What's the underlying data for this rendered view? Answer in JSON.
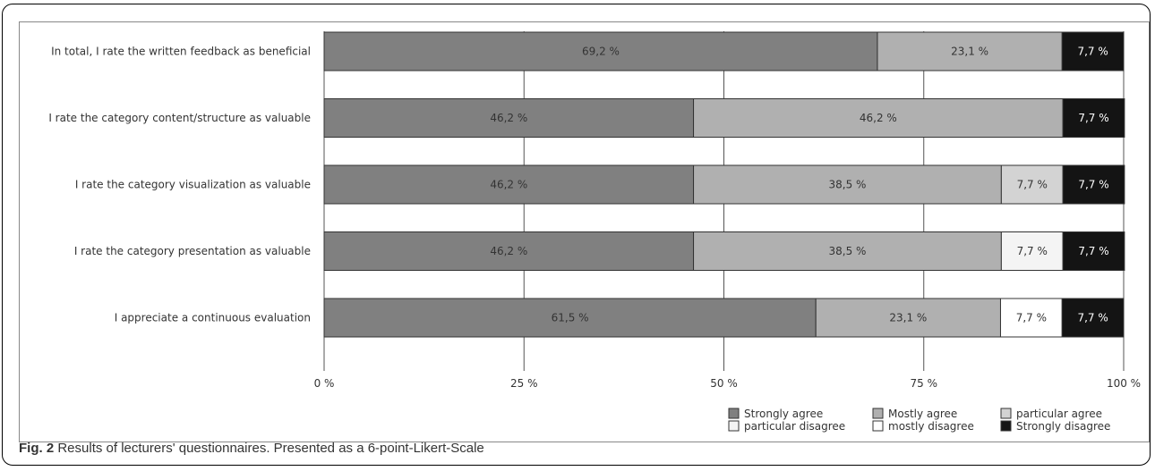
{
  "chart_data": {
    "type": "bar",
    "orientation": "horizontal",
    "stacked": true,
    "categories": [
      "In total, I rate the written feedback as beneficial",
      "I rate the category content/structure as valuable",
      "I rate the category visualization as valuable",
      "I rate the category presentation as valuable",
      "I appreciate a continuous evaluation"
    ],
    "series": [
      {
        "name": "Strongly agree",
        "color": "#808080",
        "values": [
          69.2,
          46.2,
          46.2,
          46.2,
          61.5
        ],
        "labels": [
          "69,2 %",
          "46,2 %",
          "46,2 %",
          "46,2 %",
          "61,5 %"
        ]
      },
      {
        "name": "Mostly agree",
        "color": "#b0b0b0",
        "values": [
          23.1,
          46.2,
          38.5,
          38.5,
          23.1
        ],
        "labels": [
          "23,1 %",
          "46,2 %",
          "38,5 %",
          "38,5 %",
          "23,1 %"
        ]
      },
      {
        "name": "particular agree",
        "color": "#d3d3d3",
        "values": [
          0,
          0,
          7.7,
          0,
          0
        ],
        "labels": [
          "",
          "",
          "7,7 %",
          "",
          ""
        ]
      },
      {
        "name": "particular disagree",
        "color": "#f4f4f4",
        "values": [
          0,
          0,
          0,
          7.7,
          0
        ],
        "labels": [
          "",
          "",
          "",
          "7,7 %",
          ""
        ]
      },
      {
        "name": "mostly disagree",
        "color": "#ffffff",
        "values": [
          0,
          0,
          0,
          0,
          7.7
        ],
        "labels": [
          "",
          "",
          "",
          "",
          "7,7 %"
        ]
      },
      {
        "name": "Strongly disagree",
        "color": "#141414",
        "values": [
          7.7,
          7.7,
          7.7,
          7.7,
          7.7
        ],
        "labels": [
          "7,7 %",
          "7,7 %",
          "7,7 %",
          "7,7 %",
          "7,7 %"
        ]
      }
    ],
    "xlim": [
      0,
      100
    ],
    "xticks": [
      0,
      25,
      50,
      75,
      100
    ],
    "xtick_labels": [
      "0 %",
      "25 %",
      "50 %",
      "75 %",
      "100 %"
    ],
    "grid": true,
    "legend_position": "bottom-right"
  },
  "caption": {
    "fig_label": "Fig. 2",
    "text": " Results of lecturers' questionnaires. Presented as a 6-point-Likert-Scale"
  }
}
